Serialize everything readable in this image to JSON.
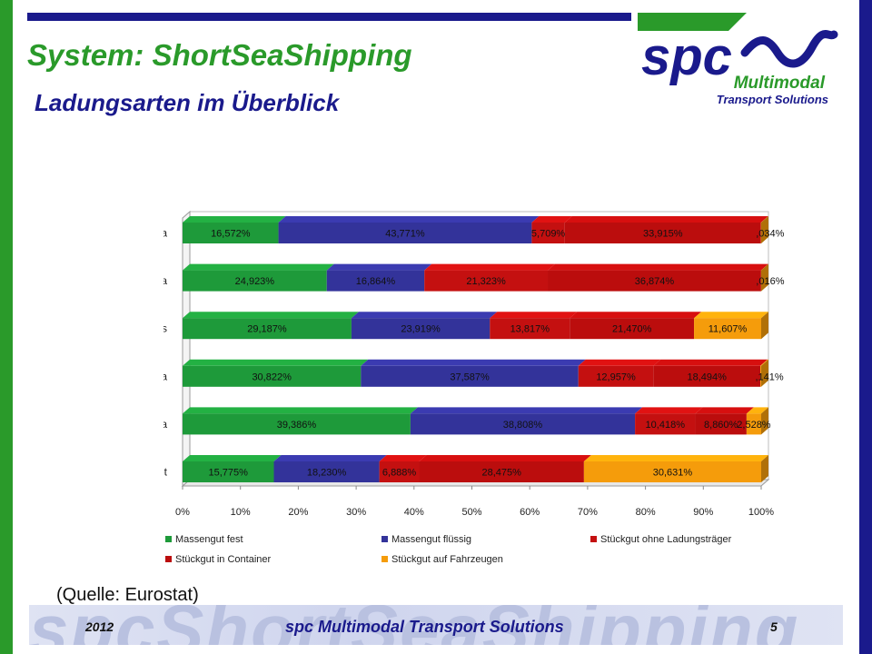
{
  "header": {
    "title": "System: ShortSeaShipping",
    "subtitle": "Ladungsarten im Überblick"
  },
  "logo": {
    "name": "spc",
    "line1": "Multimodal",
    "line2": "Transport Solutions"
  },
  "source_note": "(Quelle: Eurostat)",
  "footer": {
    "year": "2012",
    "company": "spc Multimodal Transport Solutions",
    "page": "5",
    "watermark": "spcShortSeaShipping"
  },
  "colors": {
    "green": "#2a9a2a",
    "navy": "#1a1a8c"
  },
  "chart_data": {
    "type": "bar",
    "orientation": "horizontal",
    "stacked": true,
    "percent_stacked": true,
    "three_d": true,
    "categories": [
      "Nordafrika",
      "Süd-/Südosteuropa",
      "innerhalb Deutschlands",
      "Westeuropa",
      "Nordeuropa",
      "Ostseegebiet"
    ],
    "series": [
      {
        "name": "Massengut fest",
        "color": "#1e9a3a",
        "values": [
          16.572,
          24.923,
          29.187,
          30.822,
          39.386,
          15.775
        ],
        "labels": [
          "16,572%",
          "24,923%",
          "29,187%",
          "30,822%",
          "39,386%",
          "15,775%"
        ]
      },
      {
        "name": "Massengut flüssig",
        "color": "#33339a",
        "values": [
          43.771,
          16.864,
          23.919,
          37.587,
          38.808,
          18.23
        ],
        "labels": [
          "43,771%",
          "16,864%",
          "23,919%",
          "37,587%",
          "38,808%",
          "18,230%"
        ]
      },
      {
        "name": "Stückgut ohne Ladungsträger",
        "color": "#c41010",
        "values": [
          5.709,
          21.323,
          13.817,
          12.957,
          10.418,
          6.888
        ],
        "labels": [
          "5,709%",
          "21,323%",
          "13,817%",
          "12,957%",
          "10,418%",
          "6,888%"
        ]
      },
      {
        "name": "Stückgut in Container",
        "color": "#bb0d0d",
        "values": [
          33.915,
          36.874,
          21.47,
          18.494,
          8.86,
          28.475
        ],
        "labels": [
          "33,915%",
          "36,874%",
          "21,470%",
          "18,494%",
          "8,860%",
          "28,475%"
        ]
      },
      {
        "name": "Stückgut auf Fahrzeugen",
        "color": "#f59c0b",
        "values": [
          0.034,
          0.016,
          11.607,
          0.141,
          2.528,
          30.631
        ],
        "labels": [
          ",034%",
          ",016%",
          "11,607%",
          ",141%",
          "2,528%",
          "30,631%"
        ]
      }
    ],
    "xlim": [
      0,
      100
    ],
    "xticks": [
      "0%",
      "10%",
      "20%",
      "30%",
      "40%",
      "50%",
      "60%",
      "70%",
      "80%",
      "90%",
      "100%"
    ],
    "grid": false,
    "legend_position": "bottom"
  }
}
